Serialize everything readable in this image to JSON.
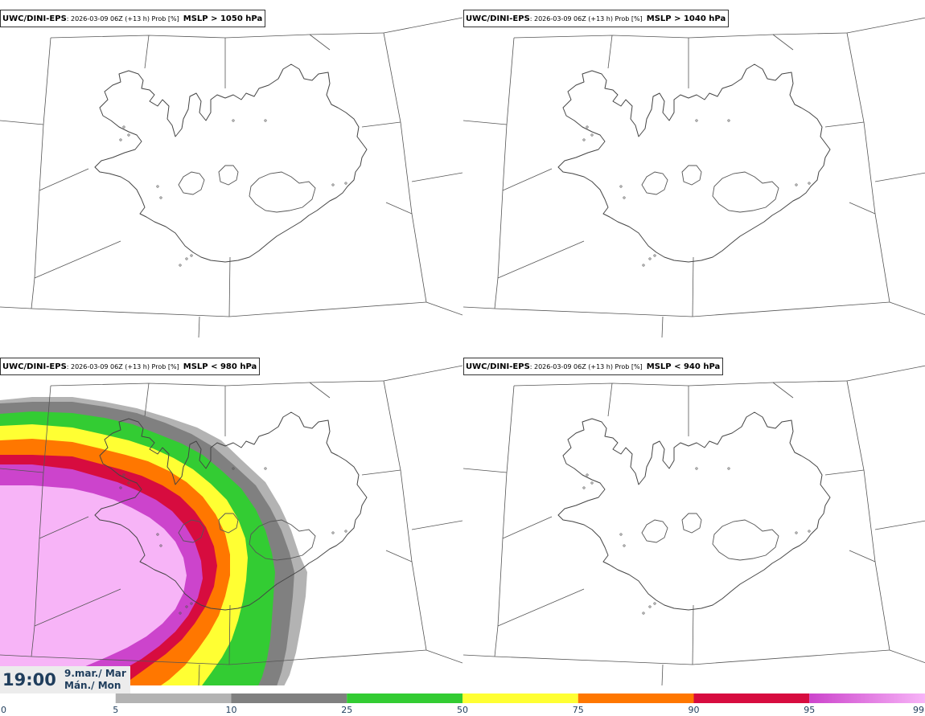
{
  "panels": [
    {
      "model": "UWC/DINI-EPS",
      "meta": ": 2026-03-09 06Z (+13 h) Prob [%]",
      "threshold": "MSLP > 1050 hPa",
      "filled": false
    },
    {
      "model": "UWC/DINI-EPS",
      "meta": ": 2026-03-09 06Z (+13 h) Prob [%]",
      "threshold": "MSLP > 1040 hPa",
      "filled": false
    },
    {
      "model": "UWC/DINI-EPS",
      "meta": ": 2026-03-09 06Z (+13 h) Prob [%]",
      "threshold": "MSLP < 980 hPa",
      "filled": true
    },
    {
      "model": "UWC/DINI-EPS",
      "meta": ": 2026-03-09 06Z (+13 h) Prob [%]",
      "threshold": "MSLP < 940 hPa",
      "filled": false
    }
  ],
  "time": {
    "clock": "19:00",
    "date_line1": "9.mar./ Mar",
    "date_line2": "Mán./ Mon"
  },
  "colorbar": {
    "ticks": [
      "0",
      "5",
      "10",
      "25",
      "50",
      "75",
      "90",
      "95",
      "99"
    ],
    "segments": [
      {
        "from": 5,
        "to": 10,
        "color": "#b3b3b3"
      },
      {
        "from": 10,
        "to": 25,
        "color": "#808080"
      },
      {
        "from": 25,
        "to": 50,
        "color": "#33cc33"
      },
      {
        "from": 50,
        "to": 75,
        "color": "#ffff33"
      },
      {
        "from": 75,
        "to": 90,
        "color": "#ff7700"
      },
      {
        "from": 90,
        "to": 95,
        "color": "#d70c3f"
      },
      {
        "from": 95,
        "to": 99,
        "color": "#cc44cc",
        "color_end": "#f7b4f7"
      }
    ]
  }
}
